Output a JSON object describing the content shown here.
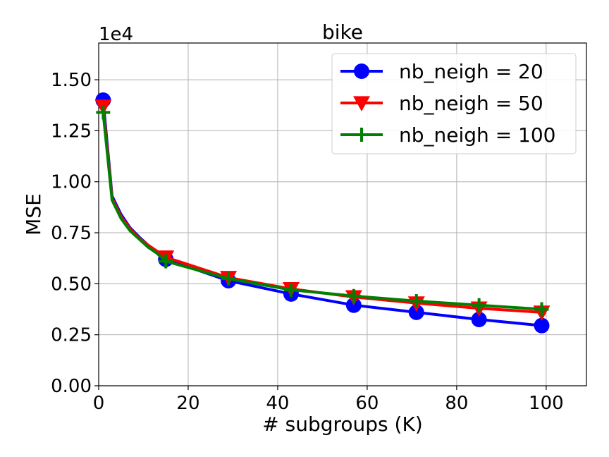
{
  "chart_data": {
    "type": "line",
    "title": "bike",
    "xlabel": "# subgroups (K)",
    "ylabel": "MSE",
    "y_offset_text": "1e4",
    "xlim": [
      0,
      109
    ],
    "ylim": [
      0,
      1.68
    ],
    "xticks": [
      0,
      20,
      40,
      60,
      80,
      100
    ],
    "yticks": [
      0.0,
      0.25,
      0.5,
      0.75,
      1.0,
      1.25,
      1.5
    ],
    "xtick_labels": [
      "0",
      "20",
      "40",
      "60",
      "80",
      "100"
    ],
    "ytick_labels": [
      "0.00",
      "0.25",
      "0.50",
      "0.75",
      "1.00",
      "1.25",
      "1.50"
    ],
    "grid": true,
    "legend_position": "top-right",
    "x": [
      1,
      3,
      5,
      7,
      9,
      11,
      13,
      15,
      29,
      43,
      57,
      71,
      85,
      99
    ],
    "marker_indices": [
      0,
      7,
      8,
      9,
      10,
      11,
      12,
      13
    ],
    "series": [
      {
        "name": "nb_neigh = 20",
        "color": "#0000ff",
        "marker": "circle",
        "values": [
          1.4,
          0.93,
          0.84,
          0.775,
          0.73,
          0.69,
          0.66,
          0.62,
          0.515,
          0.45,
          0.395,
          0.36,
          0.325,
          0.295
        ]
      },
      {
        "name": "nb_neigh = 50",
        "color": "#ff0000",
        "marker": "triangle-down",
        "values": [
          1.37,
          0.92,
          0.83,
          0.77,
          0.725,
          0.69,
          0.66,
          0.63,
          0.53,
          0.475,
          0.435,
          0.405,
          0.38,
          0.36
        ]
      },
      {
        "name": "nb_neigh = 100",
        "color": "#008000",
        "marker": "plus",
        "values": [
          1.34,
          0.91,
          0.82,
          0.76,
          0.72,
          0.68,
          0.65,
          0.61,
          0.525,
          0.47,
          0.44,
          0.415,
          0.395,
          0.375
        ]
      }
    ]
  }
}
